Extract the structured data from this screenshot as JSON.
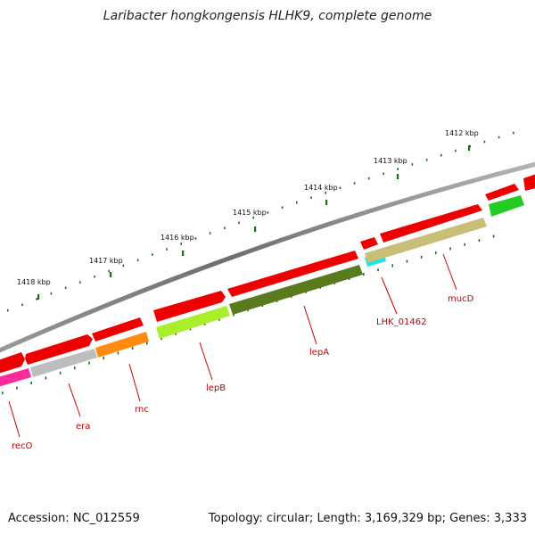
{
  "title": "Laribacter hongkongensis HLHK9, complete genome",
  "footer": {
    "accession": "Accession: NC_012559",
    "summary": "Topology: circular; Length: 3,169,329 bp; Genes: 3,333"
  },
  "colors": {
    "backbone": "#7a7a7a",
    "cds": "#ee0000",
    "tick_major": "#1a6e1a",
    "label": "#cc0000"
  },
  "kbp_labels": [
    "1412 kbp",
    "1413 kbp",
    "1414 kbp",
    "1415 kbp",
    "1416 kbp",
    "1417 kbp",
    "1418 kbp"
  ],
  "genes": [
    {
      "name": "recO",
      "color": "#ff2a9a"
    },
    {
      "name": "era",
      "color": "#bdbdbd"
    },
    {
      "name": "rnc",
      "color": "#ff8c10"
    },
    {
      "name": "lepB",
      "color": "#a8ee2a"
    },
    {
      "name": "lepA",
      "color": "#5a7a1e"
    },
    {
      "name": "LHK_01462",
      "color": "#10e8f0"
    },
    {
      "name": "mucD",
      "color": "#c8be78"
    },
    {
      "name": "",
      "color": "#22cc22"
    }
  ]
}
